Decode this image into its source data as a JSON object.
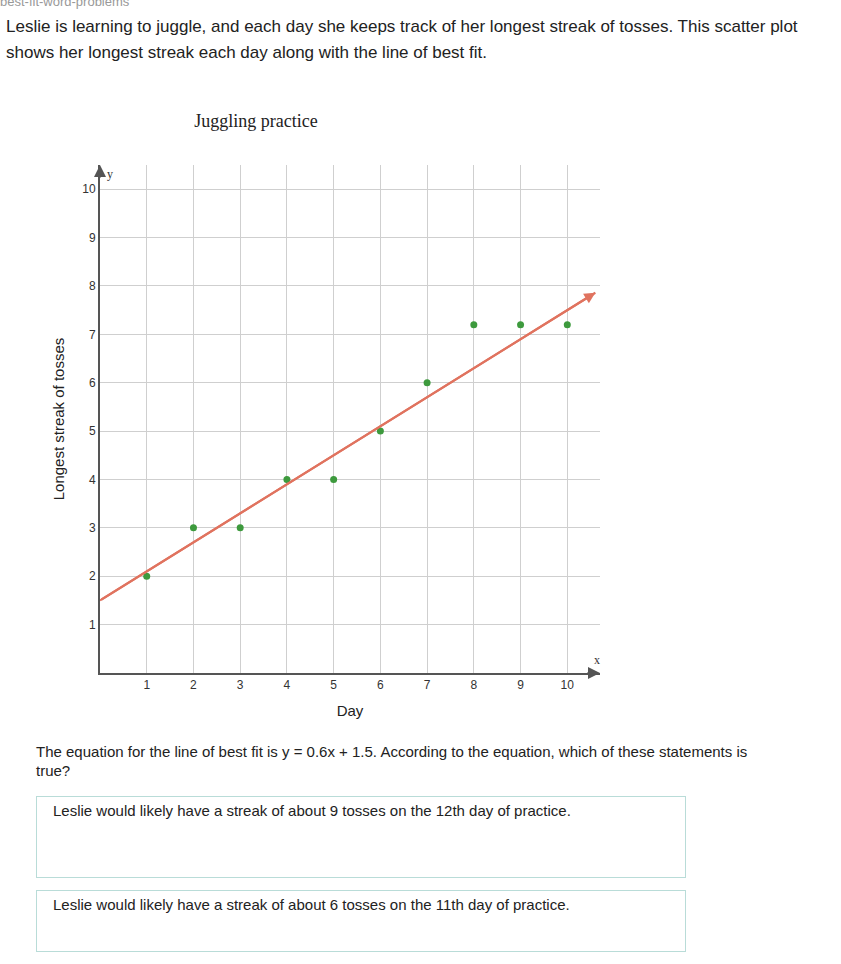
{
  "header": "best-fit-word-problems",
  "intro": "Leslie is learning to juggle, and each day she keeps track of her longest streak of tosses. This scatter plot shows her longest streak each day along with the line of best fit.",
  "question": "The equation for the line of best fit is y = 0.6x + 1.5. According to the equation, which of these statements is true?",
  "choices": [
    "Leslie would likely have a streak of about 9 tosses on the 12th day of practice.",
    "Leslie would likely have a streak of about 6 tosses on the 11th day of practice."
  ],
  "chart_data": {
    "type": "scatter",
    "title": "Juggling practice",
    "x_label": "Day",
    "y_label": "Longest streak of tosses",
    "annotations": [
      {
        "text": "x"
      },
      {
        "text": "y"
      }
    ],
    "xlim": [
      0,
      10.7
    ],
    "ylim": [
      0,
      10.5
    ],
    "xticks": [
      1,
      2,
      3,
      4,
      5,
      6,
      7,
      8,
      9,
      10
    ],
    "yticks": [
      1,
      2,
      3,
      4,
      5,
      6,
      7,
      8,
      9,
      10
    ],
    "grid": true,
    "series": [
      {
        "type": "scatter",
        "marker": "circle",
        "color": "#3d9a3d",
        "x": [
          1,
          2,
          3,
          4,
          5,
          6,
          7,
          8,
          9,
          10
        ],
        "values": [
          2,
          3,
          3,
          4,
          4,
          5,
          6,
          7.2,
          7.2,
          7.2
        ]
      },
      {
        "type": "line",
        "line_style": "solid",
        "marker": "arrow",
        "color": "#e0735f",
        "x": [
          0,
          10.6
        ],
        "values": [
          1.5,
          7.86
        ]
      }
    ]
  }
}
